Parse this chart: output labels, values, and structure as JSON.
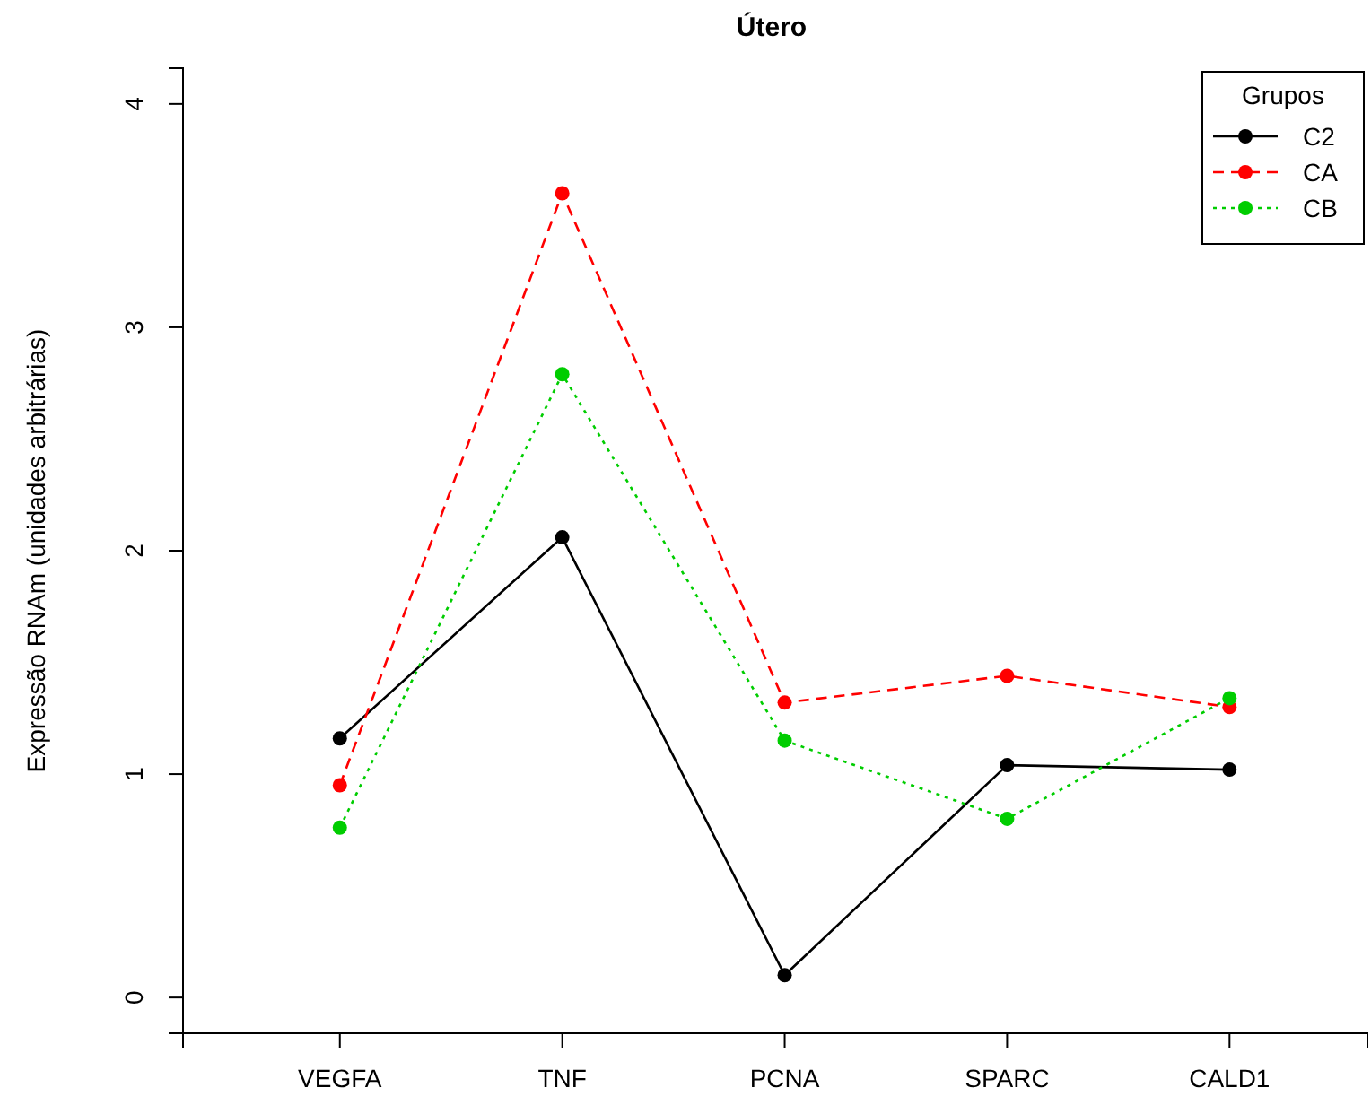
{
  "chart_data": {
    "type": "line",
    "title": "Útero",
    "ylabel": "Expressão RNAm (unidades arbitrárias)",
    "legend_title": "Grupos",
    "legend": "top right",
    "marker": "circle",
    "categories": [
      "VEGFA",
      "TNF",
      "PCNA",
      "SPARC",
      "CALD1"
    ],
    "ylim": [
      -0.16,
      4.16
    ],
    "yticks": [
      0,
      1,
      2,
      3,
      4
    ],
    "grid": false,
    "series": [
      {
        "name": "C2",
        "color": "#000000",
        "line_style": "solid",
        "values": [
          1.16,
          2.06,
          0.1,
          1.04,
          1.02
        ]
      },
      {
        "name": "CA",
        "color": "#ff0000",
        "line_style": "dashed",
        "values": [
          0.95,
          3.6,
          1.32,
          1.44,
          1.3
        ]
      },
      {
        "name": "CB",
        "color": "#00cd00",
        "line_style": "dotted",
        "values": [
          0.76,
          2.79,
          1.15,
          0.8,
          1.34
        ]
      }
    ]
  }
}
